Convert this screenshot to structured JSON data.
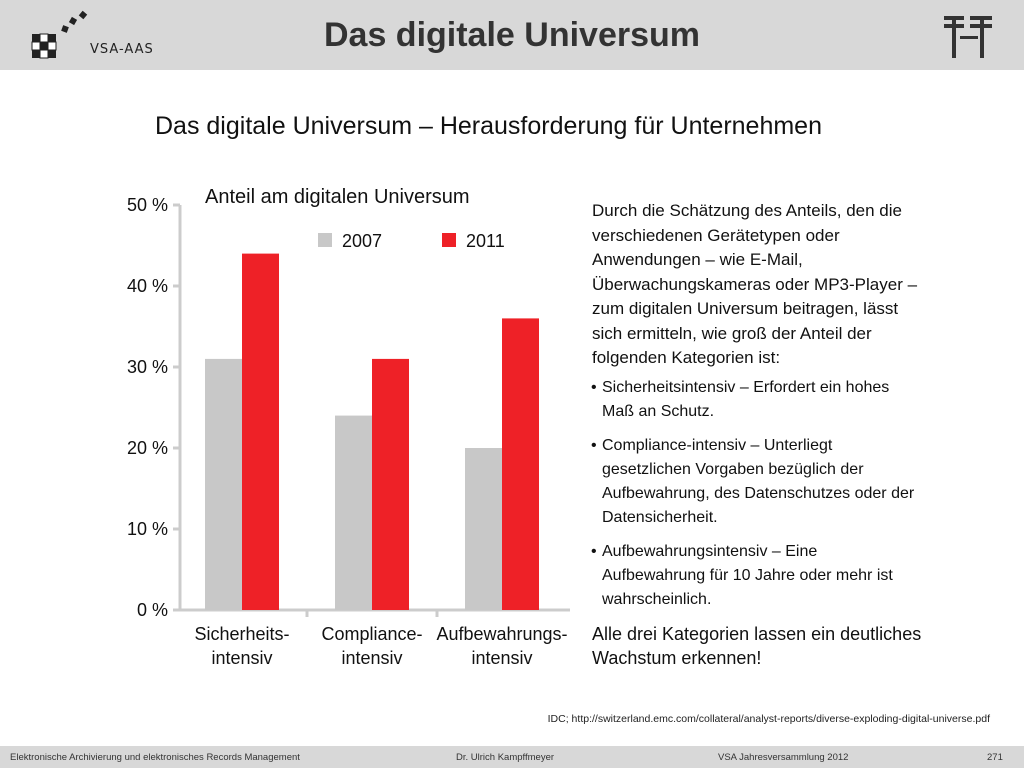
{
  "header": {
    "logo_text": "VSA-AAS",
    "title": "Das digitale Universum"
  },
  "slide": {
    "subtitle": "Das digitale Universum – Herausforderung für Unternehmen",
    "description": {
      "intro": "Durch die Schätzung des Anteils, den die verschiedenen Gerätetypen oder Anwendungen – wie E-Mail, Überwachungskameras oder MP3-Player – zum digitalen Universum beitragen, lässt sich ermitteln, wie groß der Anteil der folgenden Kategorien ist:",
      "bullets": [
        "Sicherheitsintensiv – Erfordert ein hohes Maß an Schutz.",
        "Compliance-intensiv – Unterliegt gesetzlichen Vorgaben bezüglich der Aufbewahrung, des Datenschutzes oder der Datensicherheit.",
        "Aufbewahrungsintensiv – Eine Aufbewahrung für 10 Jahre oder mehr ist wahrscheinlich."
      ],
      "outro": "Alle drei Kategorien lassen ein deutliches Wachstum erkennen!"
    },
    "source": "IDC; http://switzerland.emc.com/collateral/analyst-reports/diverse-exploding-digital-universe.pdf"
  },
  "chart_data": {
    "type": "bar",
    "title": "Anteil am digitalen Universum",
    "categories": [
      [
        "Sicherheits-",
        "intensiv"
      ],
      [
        "Compliance-",
        "intensiv"
      ],
      [
        "Aufbewahrungs-",
        "intensiv"
      ]
    ],
    "series": [
      {
        "name": "2007",
        "values": [
          31,
          24,
          20
        ],
        "color": "#c8c8c8"
      },
      {
        "name": "2011",
        "values": [
          44,
          31,
          36
        ],
        "color": "#ee2127"
      }
    ],
    "yticks": [
      "0 %",
      "10 %",
      "20 %",
      "30 %",
      "40 %",
      "50 %"
    ],
    "ylim": [
      0,
      50
    ],
    "xlabel": "",
    "ylabel": "",
    "grid": false,
    "legend_position": "top"
  },
  "footer": {
    "left": "Elektronische Archivierung und elektronisches Records Management",
    "middle": "Dr. Ulrich Kampffmeyer",
    "right": "VSA Jahresversammlung 2012",
    "page": "271"
  }
}
